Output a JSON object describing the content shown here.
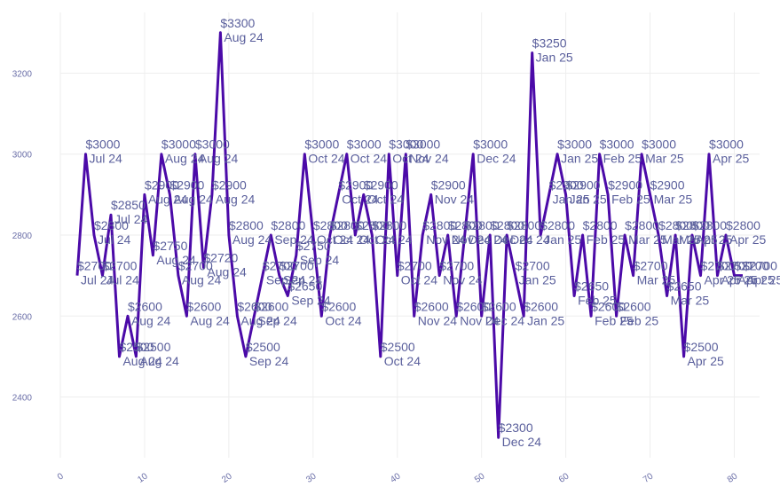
{
  "chart_data": {
    "type": "line",
    "title": "",
    "xlabel": "",
    "ylabel": "",
    "grid": true,
    "legend": "none",
    "xlim": [
      0,
      83
    ],
    "ylim": [
      2250,
      3350
    ],
    "x_ticks": [
      0,
      10,
      20,
      30,
      40,
      50,
      60,
      70,
      80
    ],
    "x_tick_labels": [
      "0",
      "10",
      "20",
      "30",
      "40",
      "50",
      "60",
      "70",
      "80"
    ],
    "y_ticks": [
      2400,
      2600,
      2800,
      3000,
      3200
    ],
    "y_tick_labels": [
      "2400",
      "2600",
      "2800",
      "3000",
      "3200"
    ],
    "line_color": "#4b0aa8",
    "label_color": "#5a5f9c",
    "series": [
      {
        "values": [
          2700,
          3000,
          2800,
          2700,
          2850,
          2500,
          2600,
          2500,
          2900,
          2750,
          3000,
          2900,
          2700,
          2600,
          3000,
          2720,
          2900,
          3300,
          2800,
          2600,
          2500,
          2600,
          2700,
          2800,
          2700,
          2650,
          2750,
          3000,
          2800,
          2600,
          2800,
          2900,
          3000,
          2800,
          2900,
          2800,
          2500,
          3000,
          2700,
          3000,
          2600,
          2800,
          2900,
          2700,
          2800,
          2600,
          2800,
          3000,
          2600,
          2800,
          2300,
          2800,
          2700,
          2600,
          3250,
          2800,
          2900,
          3000,
          2900,
          2650,
          2800,
          2600,
          3000,
          2900,
          2600,
          2800,
          2700,
          3000,
          2900,
          2800,
          2650,
          2800,
          2500,
          2800,
          2700,
          3000,
          2700,
          2800,
          2700,
          2700
        ],
        "labels": [
          [
            "$2700",
            "Jul 24"
          ],
          [
            "$3000",
            "Jul 24"
          ],
          [
            "$2800",
            "Jul 24"
          ],
          [
            "$2700",
            "Jul 24"
          ],
          [
            "$2850",
            "Jul 24"
          ],
          [
            "$2500",
            "Aug 24"
          ],
          [
            "$2600",
            "Aug 24"
          ],
          [
            "$2500",
            "Aug 24"
          ],
          [
            "$2900",
            "Aug 24"
          ],
          [
            "$2750",
            "Aug 24"
          ],
          [
            "$3000",
            "Aug 24"
          ],
          [
            "$2900",
            "Aug 24"
          ],
          [
            "$2700",
            "Aug 24"
          ],
          [
            "$2600",
            "Aug 24"
          ],
          [
            "$3000",
            "Aug 24"
          ],
          [
            "$2720",
            "Aug 24"
          ],
          [
            "$2900",
            "Aug 24"
          ],
          [
            "$3300",
            "Aug 24"
          ],
          [
            "$2800",
            "Aug 24"
          ],
          [
            "$2600",
            "Aug 24"
          ],
          [
            "$2500",
            "Sep 24"
          ],
          [
            "$2600",
            "Sep 24"
          ],
          [
            "$2700",
            "Sep 24"
          ],
          [
            "$2800",
            "Sep 24"
          ],
          [
            "$2700",
            "Sep 24"
          ],
          [
            "$2650",
            "Sep 24"
          ],
          [
            "$2750",
            "Sep 24"
          ],
          [
            "$3000",
            "Oct 24"
          ],
          [
            "$2800",
            "Oct 24"
          ],
          [
            "$2600",
            "Oct 24"
          ],
          [
            "$2800",
            "Oct 24"
          ],
          [
            "$2900",
            "Oct 24"
          ],
          [
            "$3000",
            "Oct 24"
          ],
          [
            "$2800",
            "Oct 24"
          ],
          [
            "$2900",
            "Oct 24"
          ],
          [
            "$2800",
            "Oct 24"
          ],
          [
            "$2500",
            "Oct 24"
          ],
          [
            "$3000",
            "Oct 24"
          ],
          [
            "$2700",
            "Oct 24"
          ],
          [
            "$3000",
            "Nov 24"
          ],
          [
            "$2600",
            "Nov 24"
          ],
          [
            "$2800",
            "Nov 24"
          ],
          [
            "$2900",
            "Nov 24"
          ],
          [
            "$2700",
            "Nov 24"
          ],
          [
            "$2800",
            "Nov 24"
          ],
          [
            "$2600",
            "Nov 24"
          ],
          [
            "$2800",
            "Dec 24"
          ],
          [
            "$3000",
            "Dec 24"
          ],
          [
            "$2600",
            "Dec 24"
          ],
          [
            "$2800",
            "Dec 24"
          ],
          [
            "$2300",
            "Dec 24"
          ],
          [
            "$2800",
            "Dec 24"
          ],
          [
            "$2700",
            "Jan 25"
          ],
          [
            "$2600",
            "Jan 25"
          ],
          [
            "$3250",
            "Jan 25"
          ],
          [
            "$2800",
            "Jan 25"
          ],
          [
            "$2900",
            "Jan 25"
          ],
          [
            "$3000",
            "Jan 25"
          ],
          [
            "$2900",
            "Jan 25"
          ],
          [
            "$2650",
            "Feb 25"
          ],
          [
            "$2800",
            "Feb 25"
          ],
          [
            "$2600",
            "Feb 25"
          ],
          [
            "$3000",
            "Feb 25"
          ],
          [
            "$2900",
            "Feb 25"
          ],
          [
            "$2600",
            "Feb 25"
          ],
          [
            "$2800",
            "Mar 25"
          ],
          [
            "$2700",
            "Mar 25"
          ],
          [
            "$3000",
            "Mar 25"
          ],
          [
            "$2900",
            "Mar 25"
          ],
          [
            "$2800",
            "Mar 25"
          ],
          [
            "$2650",
            "Mar 25"
          ],
          [
            "$2800",
            "Mar 25"
          ],
          [
            "$2500",
            "Apr 25"
          ],
          [
            "$2800",
            "Apr 25"
          ],
          [
            "$2700",
            "Apr 25"
          ],
          [
            "$3000",
            "Apr 25"
          ],
          [
            "$2700",
            "Apr 25"
          ],
          [
            "$2800",
            "Apr 25"
          ],
          [
            "$2700",
            "Apr 25"
          ],
          [
            "$2700",
            "Apr 25"
          ]
        ]
      }
    ]
  }
}
